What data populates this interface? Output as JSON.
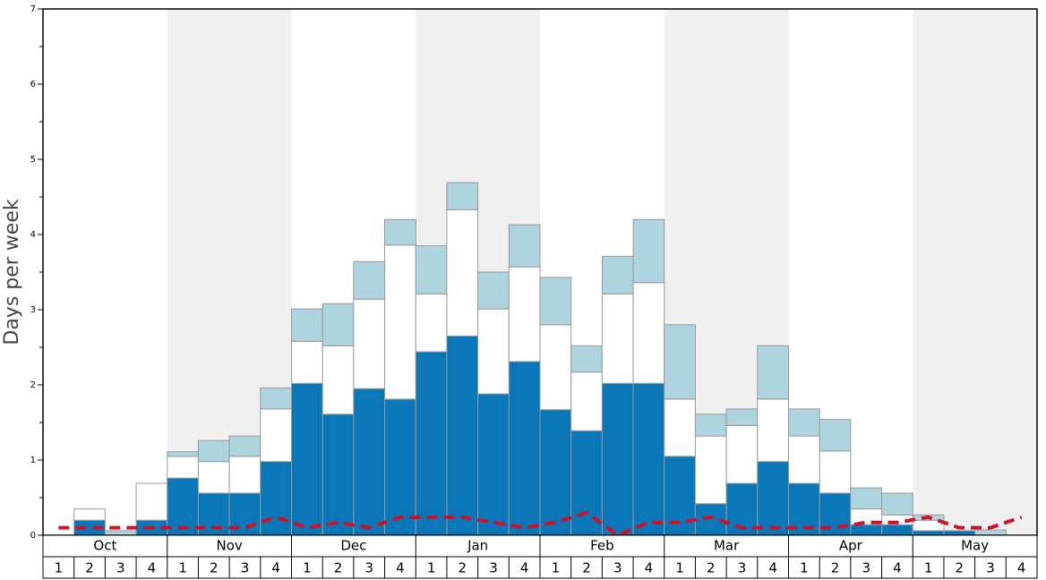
{
  "chart_data": {
    "type": "stacked_bar",
    "y_label": "Days per week",
    "months": [
      "Oct",
      "Nov",
      "Dec",
      "Jan",
      "Feb",
      "Mar",
      "Apr",
      "May"
    ],
    "categories": [
      "1",
      "2",
      "3",
      "4",
      "1",
      "2",
      "3",
      "4",
      "1",
      "2",
      "3",
      "4",
      "1",
      "2",
      "3",
      "4",
      "1",
      "2",
      "3",
      "4",
      "1",
      "2",
      "3",
      "4",
      "1",
      "2",
      "3",
      "4",
      "1",
      "2",
      "3",
      "4"
    ],
    "series": [
      {
        "color": "#0a77b8",
        "values": [
          0,
          0.2,
          0,
          0.2,
          0.76,
          0.56,
          0.56,
          0.98,
          2.02,
          1.61,
          1.95,
          1.81,
          2.44,
          2.65,
          1.88,
          2.31,
          1.67,
          1.39,
          2.02,
          2.02,
          1.05,
          0.42,
          0.69,
          0.98,
          0.69,
          0.56,
          0.14,
          0.14,
          0.06,
          0.06,
          0,
          0
        ]
      },
      {
        "color": "#ffffff",
        "values": [
          0,
          0.15,
          0,
          0.49,
          0.29,
          0.42,
          0.49,
          0.7,
          0.56,
          0.91,
          1.19,
          2.05,
          0.77,
          1.68,
          1.13,
          1.26,
          1.13,
          0.78,
          1.19,
          1.34,
          0.76,
          0.9,
          0.77,
          0.83,
          0.63,
          0.56,
          0.21,
          0.13,
          0.14,
          0,
          0,
          0
        ]
      },
      {
        "color": "#aed4e0",
        "values": [
          0,
          0,
          0.06,
          0,
          0.06,
          0.28,
          0.27,
          0.28,
          0.43,
          0.56,
          0.5,
          0.34,
          0.64,
          0.36,
          0.49,
          0.56,
          0.63,
          0.35,
          0.5,
          0.84,
          0.99,
          0.29,
          0.22,
          0.71,
          0.36,
          0.42,
          0.28,
          0.29,
          0.07,
          0,
          0.07,
          0
        ]
      }
    ],
    "line": {
      "color": "#d0112b",
      "values": [
        0.1,
        0.1,
        0.1,
        0.1,
        0.1,
        0.1,
        0.1,
        0.24,
        0.1,
        0.17,
        0.1,
        0.24,
        0.24,
        0.24,
        0.17,
        0.1,
        0.17,
        0.3,
        0,
        0.17,
        0.17,
        0.24,
        0.1,
        0.1,
        0.1,
        0.1,
        0.17,
        0.17,
        0.24,
        0.1,
        0.1,
        0.24
      ]
    },
    "ylim": [
      0,
      7
    ],
    "yticks": [
      0,
      1,
      2,
      3,
      4,
      5,
      6,
      7
    ],
    "yminorticks": [
      0.5,
      1.5,
      2.5,
      3.5,
      4.5,
      5.5,
      6.5
    ]
  }
}
